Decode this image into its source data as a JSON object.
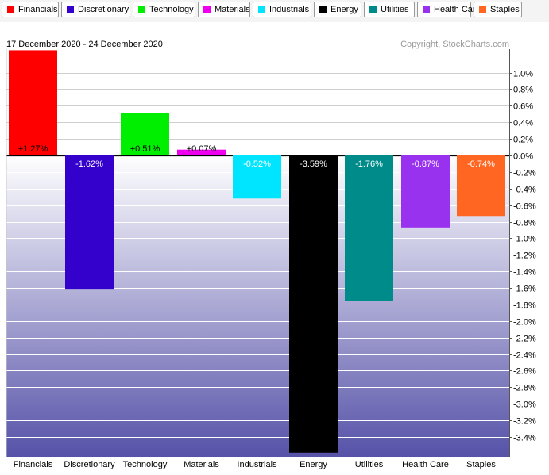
{
  "header": {
    "date_range": "17 December 2020 - 24 December 2020",
    "copyright": "Copyright, StockCharts.com"
  },
  "chart_data": {
    "type": "bar",
    "categories": [
      "Financials",
      "Discretionary",
      "Technology",
      "Materials",
      "Industrials",
      "Energy",
      "Utilities",
      "Health Care",
      "Staples"
    ],
    "values": [
      1.27,
      -1.62,
      0.51,
      0.07,
      -0.52,
      -3.59,
      -1.76,
      -0.87,
      -0.74
    ],
    "value_labels": [
      "+1.27%",
      "-1.62%",
      "+0.51%",
      "+0.07%",
      "-0.52%",
      "-3.59%",
      "-1.76%",
      "-0.87%",
      "-0.74%"
    ],
    "colors": [
      "#ff0000",
      "#3300cc",
      "#00ee00",
      "#ee00ee",
      "#00e5ff",
      "#000000",
      "#008b8b",
      "#9932ee",
      "#ff6622"
    ],
    "y_ticks": [
      1.0,
      0.8,
      0.6,
      0.4,
      0.2,
      0.0,
      -0.2,
      -0.4,
      -0.6,
      -0.8,
      -1.0,
      -1.2,
      -1.4,
      -1.6,
      -1.8,
      -2.0,
      -2.2,
      -2.4,
      -2.6,
      -2.8,
      -3.0,
      -3.2,
      -3.4
    ],
    "y_tick_labels": [
      "1.0%",
      "0.8%",
      "0.6%",
      "0.4%",
      "0.2%",
      "0.0%",
      "-0.2%",
      "-0.4%",
      "-0.6%",
      "-0.8%",
      "-1.0%",
      "-1.2%",
      "-1.4%",
      "-1.6%",
      "-1.8%",
      "-2.0%",
      "-2.2%",
      "-2.4%",
      "-2.6%",
      "-2.8%",
      "-3.0%",
      "-3.2%",
      "-3.4%"
    ],
    "ylim": [
      -3.6,
      1.27
    ],
    "y_axis_position": "right",
    "grid": true,
    "legend_placement": "top",
    "background_gradient": [
      "#ffffff",
      "#5652a8"
    ]
  }
}
